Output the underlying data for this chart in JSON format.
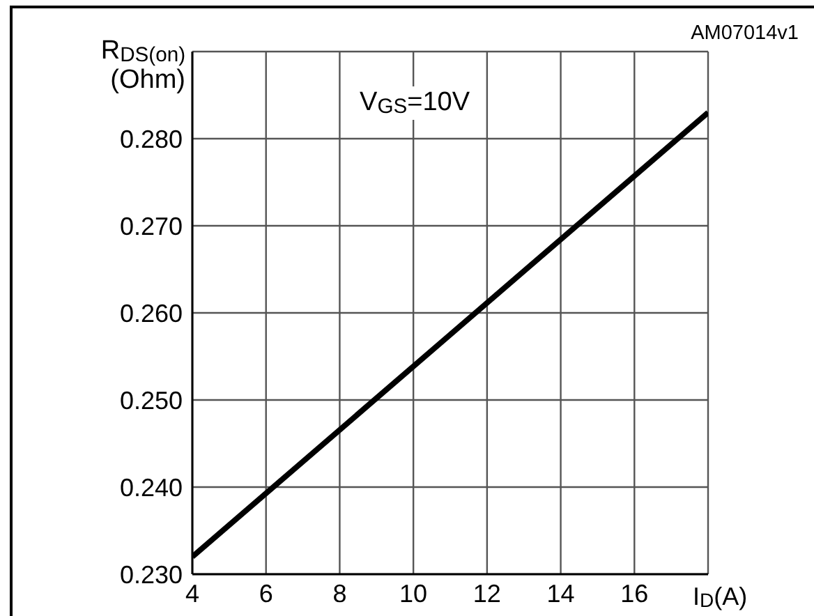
{
  "chart_data": {
    "type": "line",
    "xlabel": "I$_{D}$(A)",
    "ylabel": "R$_{DS(on)}$ (Ohm)",
    "annotations": [
      "V$_{GS}$=10V",
      "AM07014v1"
    ],
    "x": [
      4,
      11,
      18
    ],
    "series": [
      {
        "color": "#000000",
        "values": [
          0.232,
          0.2575,
          0.283
        ]
      }
    ],
    "xlim": [
      4,
      18
    ],
    "xticks": [
      4,
      6,
      8,
      10,
      12,
      14,
      16
    ],
    "ylim": [
      0.23,
      0.29
    ],
    "yticks": [
      {
        "value": 0.23,
        "label": "0.230"
      },
      {
        "value": 0.24,
        "label": "0.240"
      },
      {
        "value": 0.25,
        "label": "0.250"
      },
      {
        "value": 0.26,
        "label": "0.260"
      },
      {
        "value": 0.27,
        "label": "0.270"
      },
      {
        "value": 0.28,
        "label": "0.280"
      }
    ],
    "grid": true,
    "marker": "none"
  }
}
